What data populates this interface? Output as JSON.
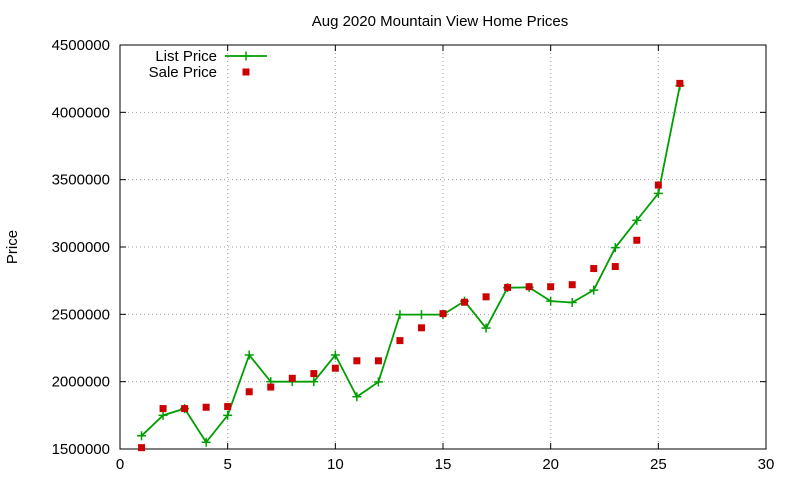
{
  "chart_data": {
    "type": "line",
    "title": "Aug 2020 Mountain View Home Prices",
    "xlabel": "",
    "ylabel": "Price",
    "xlim": [
      0,
      30
    ],
    "ylim": [
      1500000,
      4500000
    ],
    "x_ticks": [
      0,
      5,
      10,
      15,
      20,
      25,
      30
    ],
    "y_ticks": [
      1500000,
      2000000,
      2500000,
      3000000,
      3500000,
      4000000,
      4500000
    ],
    "grid": true,
    "legend_position": "top-left",
    "series": [
      {
        "name": "List Price",
        "style": "line-with-plus-markers",
        "color": "#009e00",
        "x": [
          1,
          2,
          3,
          4,
          5,
          6,
          7,
          8,
          9,
          10,
          11,
          12,
          13,
          14,
          15,
          16,
          17,
          18,
          19,
          20,
          21,
          22,
          23,
          24,
          25,
          26
        ],
        "y": [
          1598000,
          1750000,
          1800000,
          1550000,
          1750000,
          2198000,
          2000000,
          2000000,
          2000000,
          2198000,
          1888000,
          1998000,
          2498000,
          2498000,
          2498000,
          2598000,
          2398000,
          2698000,
          2700000,
          2598000,
          2588000,
          2680000,
          2995000,
          3198000,
          3398000,
          4198000
        ]
      },
      {
        "name": "Sale Price",
        "style": "square-markers",
        "color": "#cc0000",
        "x": [
          1,
          2,
          3,
          4,
          5,
          6,
          7,
          8,
          9,
          10,
          11,
          12,
          13,
          14,
          15,
          16,
          17,
          18,
          19,
          20,
          21,
          22,
          23,
          24,
          25,
          26
        ],
        "y": [
          1510000,
          1800000,
          1800000,
          1810000,
          1815000,
          1925000,
          1960000,
          2025000,
          2060000,
          2100000,
          2155000,
          2155000,
          2305000,
          2400000,
          2505000,
          2590000,
          2630000,
          2700000,
          2705000,
          2705000,
          2720000,
          2840000,
          2855000,
          3050000,
          3460000,
          4215000
        ]
      }
    ]
  }
}
